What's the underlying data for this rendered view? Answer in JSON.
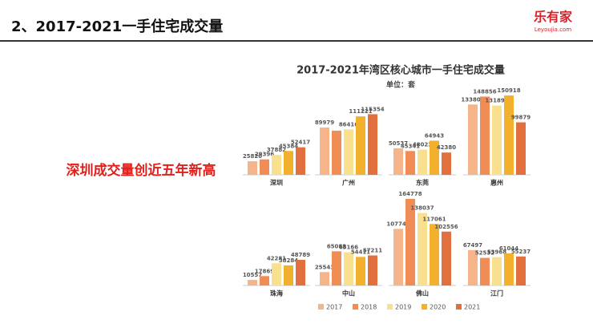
{
  "header": {
    "title": "2、2017-2021一手住宅成交量",
    "logo": "乐有家",
    "logo_sub": "Leyoujia.com"
  },
  "highlight": "深圳成交量创近五年新高",
  "chart_data": {
    "type": "bar",
    "title": "2017-2021年湾区核心城市一手住宅成交量",
    "subtitle": "单位：套",
    "categories": [
      "深圳",
      "广州",
      "东莞",
      "惠州",
      "珠海",
      "中山",
      "佛山",
      "江门"
    ],
    "series": [
      {
        "name": "2017",
        "color": "#f6b48a",
        "values": [
          25820,
          89979,
          50537,
          133808,
          10557,
          25543,
          107749,
          67497
        ]
      },
      {
        "name": "2018",
        "color": "#f08c55",
        "values": [
          29396,
          84000,
          45341,
          148856,
          17869,
          65088,
          164778,
          52532
        ],
        "value_labels": [
          "29396",
          null,
          "45341",
          "148856",
          "17869",
          "65088",
          "164778",
          "52532"
        ]
      },
      {
        "name": "2019",
        "color": "#f8e08e",
        "values": [
          37882,
          86416,
          48023,
          131891,
          42281,
          63166,
          138037,
          53968
        ]
      },
      {
        "name": "2020",
        "color": "#f2b02c",
        "values": [
          45384,
          111221,
          64943,
          150918,
          38284,
          54411,
          117061,
          61044
        ]
      },
      {
        "name": "2021",
        "color": "#e2703f",
        "values": [
          52417,
          115354,
          42380,
          99879,
          48789,
          57211,
          102556,
          55237
        ]
      }
    ]
  }
}
